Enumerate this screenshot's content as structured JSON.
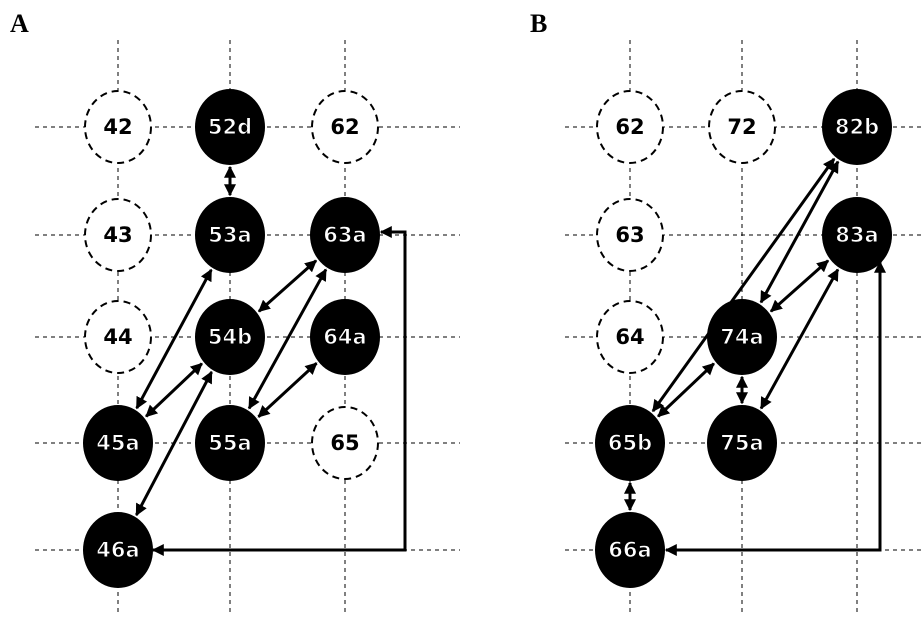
{
  "panels": [
    {
      "label": "A",
      "nodes": [
        {
          "label": "42",
          "filled": false
        },
        {
          "label": "52d",
          "filled": true
        },
        {
          "label": "62",
          "filled": false
        },
        {
          "label": "43",
          "filled": false
        },
        {
          "label": "53a",
          "filled": true
        },
        {
          "label": "63a",
          "filled": true
        },
        {
          "label": "44",
          "filled": false
        },
        {
          "label": "54b",
          "filled": true
        },
        {
          "label": "64a",
          "filled": true
        },
        {
          "label": "45a",
          "filled": true
        },
        {
          "label": "55a",
          "filled": true
        },
        {
          "label": "65",
          "filled": false
        },
        {
          "label": "46a",
          "filled": true
        }
      ]
    },
    {
      "label": "B",
      "nodes": [
        {
          "label": "62",
          "filled": false
        },
        {
          "label": "72",
          "filled": false
        },
        {
          "label": "82b",
          "filled": true
        },
        {
          "label": "63",
          "filled": false
        },
        {
          "label": "83a",
          "filled": true
        },
        {
          "label": "64",
          "filled": false
        },
        {
          "label": "74a",
          "filled": true
        },
        {
          "label": "65b",
          "filled": true
        },
        {
          "label": "75a",
          "filled": true
        },
        {
          "label": "66a",
          "filled": true
        }
      ]
    }
  ]
}
